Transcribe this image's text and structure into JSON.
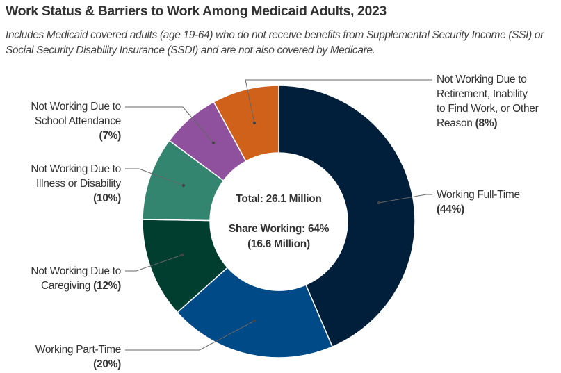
{
  "chart_data": {
    "type": "pie",
    "variant": "donut",
    "title": "Work Status & Barriers to Work Among Medicaid Adults, 2023",
    "subtitle": "Includes Medicaid covered adults (age 19-64) who do not receive benefits from Supplemental Security Income (SSI) or Social Security Disability Insurance (SSDI) and are not also covered by Medicare.",
    "center_text": {
      "total": "Total: 26.1 Million",
      "share_working": "Share Working: 64%",
      "share_working_count": "(16.6 Million)"
    },
    "slices": [
      {
        "key": "full_time",
        "label": "Working Full-Time",
        "value": 44,
        "pct_label": "(44%)",
        "color": "#011f3a"
      },
      {
        "key": "part_time",
        "label": "Working Part-Time",
        "value": 20,
        "pct_label": "(20%)",
        "color": "#004a88"
      },
      {
        "key": "caregiving",
        "label": "Not Working Due to Caregiving",
        "value": 12,
        "pct_label": "(12%)",
        "color": "#013e30"
      },
      {
        "key": "illness",
        "label": "Not Working Due to Illness or Disability",
        "value": 10,
        "pct_label": "(10%)",
        "color": "#338570"
      },
      {
        "key": "school",
        "label": "Not Working Due to School Attendance",
        "value": 7,
        "pct_label": "(7%)",
        "color": "#8f509e"
      },
      {
        "key": "retirement",
        "label": "Not Working Due to Retirement, Inability to Find Work, or Other Reason",
        "value": 8,
        "pct_label": "(8%)",
        "color": "#d0611b"
      }
    ],
    "label_lines": {
      "full_time": [
        "Working Full-Time"
      ],
      "part_time": [
        "Working Part-Time"
      ],
      "caregiving": [
        "Not Working Due to",
        "Caregiving"
      ],
      "illness": [
        "Not Working Due to",
        "Illness or Disability"
      ],
      "school": [
        "Not Working Due to",
        "School Attendance"
      ],
      "retirement": [
        "Not Working Due to",
        "Retirement, Inability",
        "to Find Work, or Other",
        "Reason"
      ]
    },
    "start_angle": "12 o'clock",
    "direction": "clockwise",
    "legend": "none (direct labels)"
  }
}
